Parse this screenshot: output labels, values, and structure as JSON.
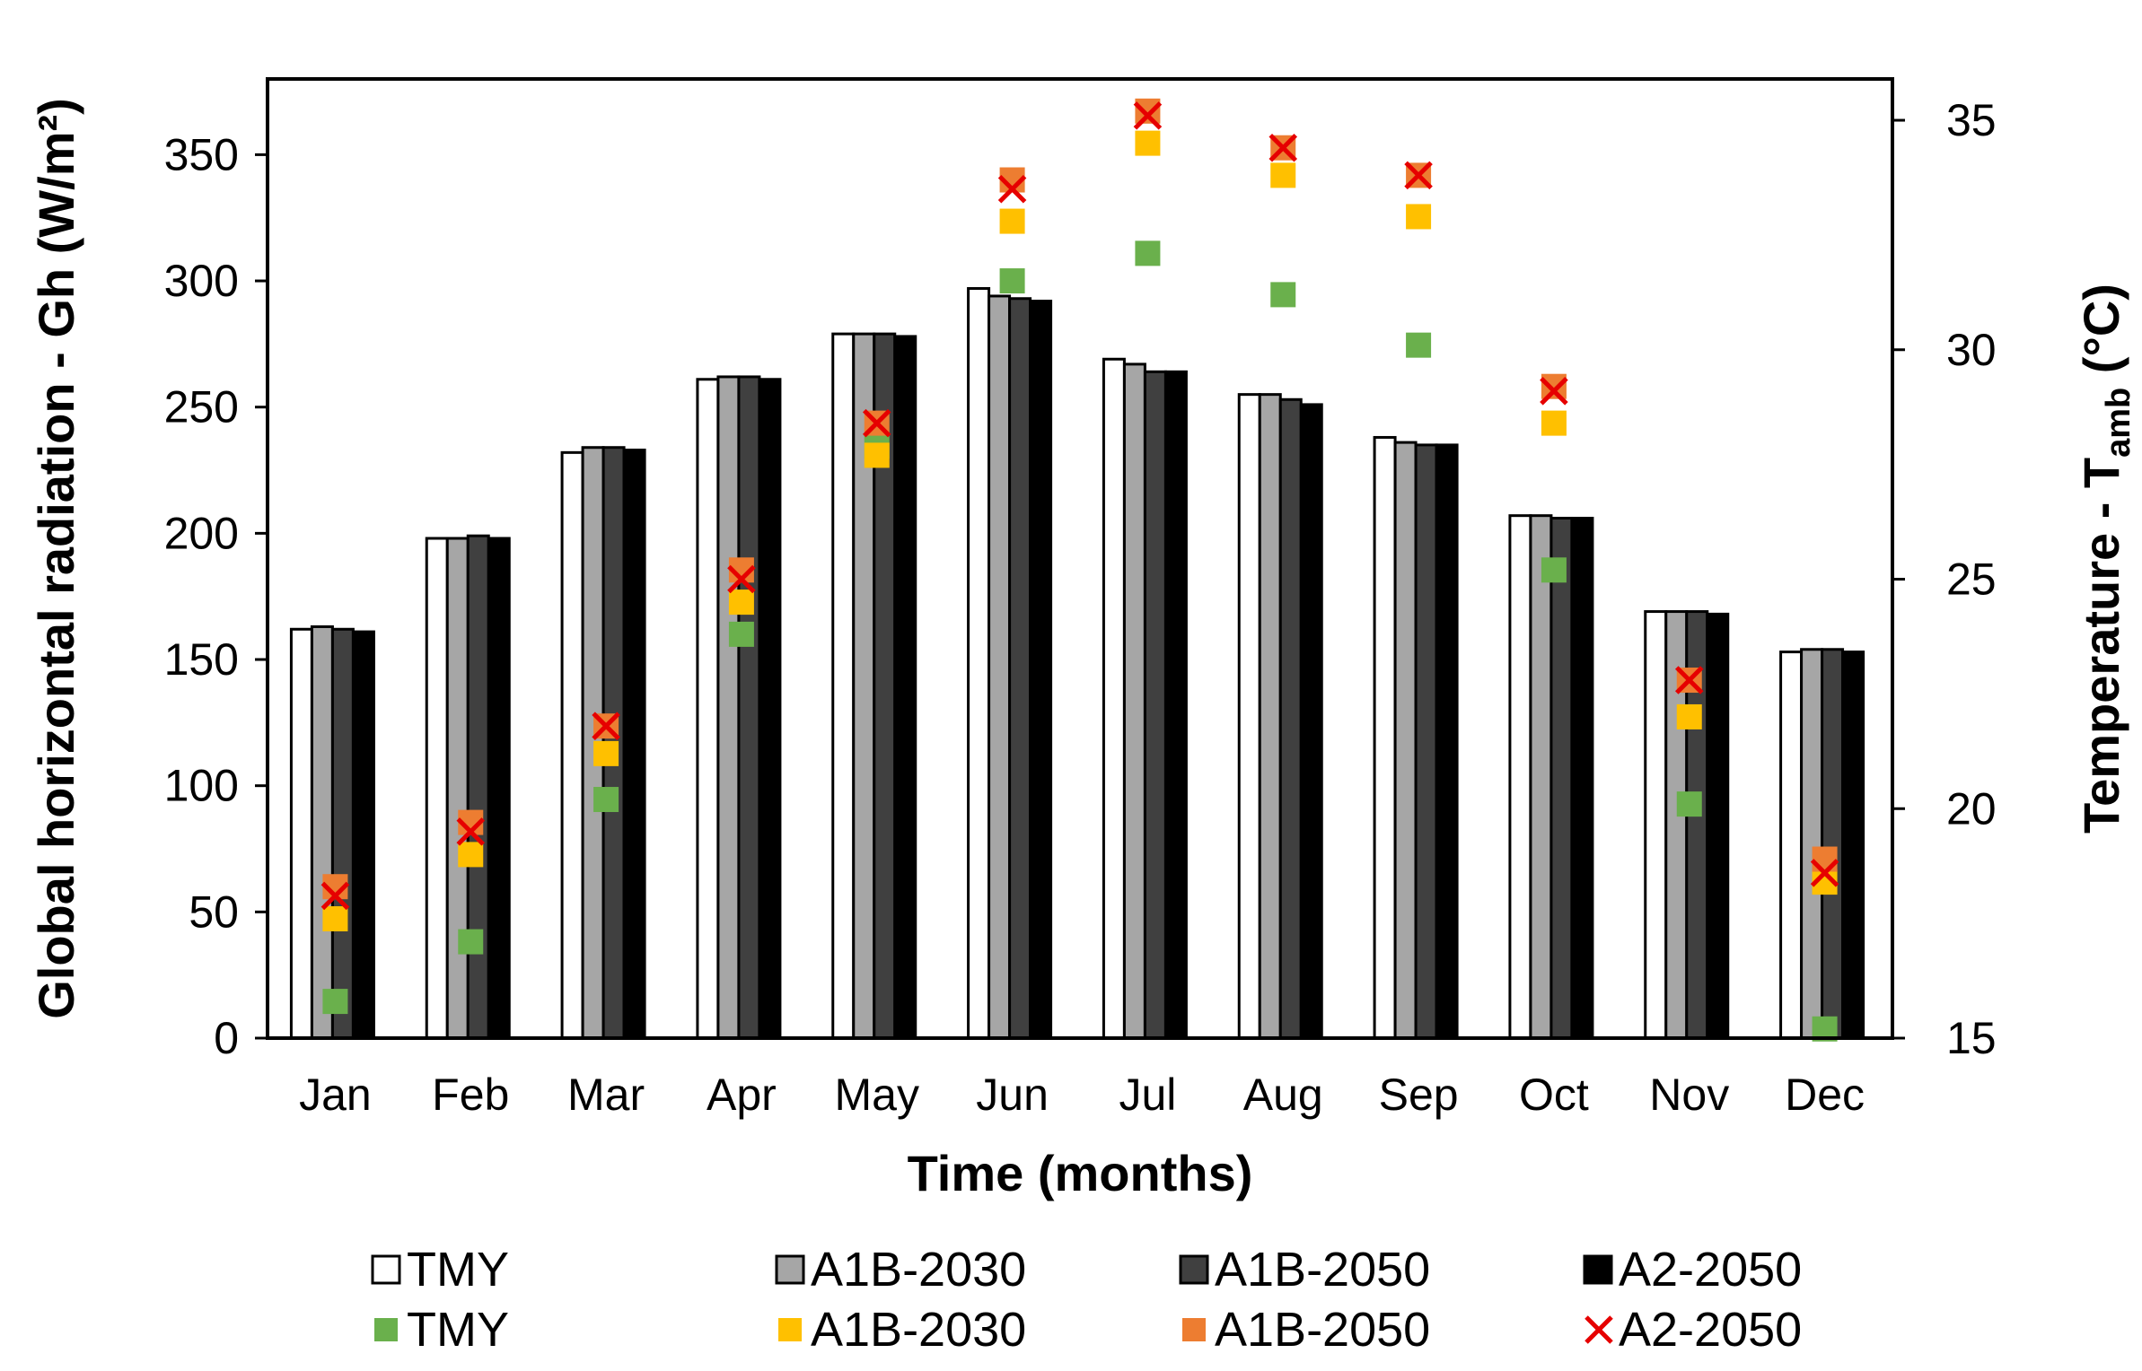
{
  "chart_data": {
    "type": "bar",
    "xlabel": "Time (months)",
    "ylabel_left": "Global horizontal radiation  -  Gh (W/m²)",
    "ylabel_right_parts": {
      "prefix": "Temperature  -  T",
      "subscript": "amb",
      "suffix": " (°C)"
    },
    "categories": [
      "Jan",
      "Feb",
      "Mar",
      "Apr",
      "May",
      "Jun",
      "Jul",
      "Aug",
      "Sep",
      "Oct",
      "Nov",
      "Dec"
    ],
    "ylim_left": [
      0,
      380
    ],
    "yticks_left": [
      0,
      50,
      100,
      150,
      200,
      250,
      300,
      350
    ],
    "ylim_right": [
      15,
      35.9
    ],
    "yticks_right": [
      15,
      20,
      25,
      30,
      35
    ],
    "bar_series": [
      {
        "name": "TMY",
        "color": "#ffffff",
        "values": [
          162,
          198,
          232,
          261,
          279,
          297,
          269,
          255,
          238,
          207,
          169,
          153
        ]
      },
      {
        "name": "A1B-2030",
        "color": "#a6a6a6",
        "values": [
          163,
          198,
          234,
          262,
          279,
          294,
          267,
          255,
          236,
          207,
          169,
          154
        ]
      },
      {
        "name": "A1B-2050",
        "color": "#404040",
        "values": [
          162,
          199,
          234,
          262,
          279,
          293,
          264,
          253,
          235,
          206,
          169,
          154
        ]
      },
      {
        "name": "A2-2050",
        "color": "#000000",
        "values": [
          161,
          198,
          233,
          261,
          278,
          292,
          264,
          251,
          235,
          206,
          168,
          153
        ]
      }
    ],
    "marker_series": [
      {
        "name": "TMY",
        "marker": "square",
        "color": "#6ab04c",
        "values": [
          15.8,
          17.1,
          20.2,
          23.8,
          27.9,
          31.5,
          32.1,
          31.2,
          30.1,
          25.2,
          20.1,
          15.2
        ]
      },
      {
        "name": "A1B-2030",
        "marker": "square",
        "color": "#ffc000",
        "values": [
          17.6,
          19.0,
          21.2,
          24.5,
          27.7,
          32.8,
          34.5,
          33.8,
          32.9,
          28.4,
          22.0,
          18.4
        ]
      },
      {
        "name": "A1B-2050",
        "marker": "square",
        "color": "#ed7d31",
        "values": [
          18.3,
          19.7,
          21.8,
          25.2,
          28.4,
          33.7,
          35.2,
          34.4,
          33.8,
          29.2,
          22.8,
          18.9
        ]
      },
      {
        "name": "A2-2050",
        "marker": "x",
        "color": "#e60000",
        "values": [
          18.1,
          19.5,
          21.8,
          25.0,
          28.4,
          33.5,
          35.1,
          34.4,
          33.8,
          29.1,
          22.8,
          18.6
        ]
      }
    ],
    "legend": {
      "placement": "bottom",
      "row1": [
        "TMY",
        "A1B-2030",
        "A1B-2050",
        "A2-2050"
      ],
      "row2": [
        "TMY",
        "A1B-2030",
        "A1B-2050",
        "A2-2050"
      ]
    }
  }
}
